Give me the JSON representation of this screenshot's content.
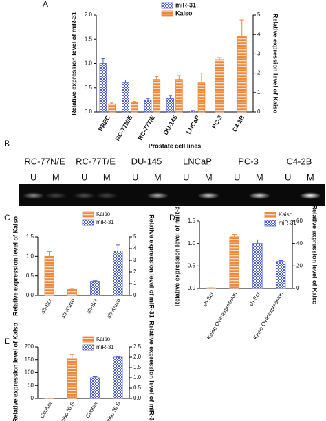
{
  "panel_labels": [
    "A",
    "B",
    "C",
    "D",
    "E"
  ],
  "gel": {
    "samples": [
      "RC-77N/E",
      "RC-77T/E",
      "DU-145",
      "LNCaP",
      "PC-3",
      "C4-2B"
    ],
    "lanes": [
      "U",
      "M"
    ]
  },
  "chart_data": [
    {
      "type": "bar",
      "legend": "top",
      "ylabel": "Relative expression level of miR-31",
      "y2label": "Relative expression level of Kaiso",
      "xlabel": "Prostate cell lines",
      "categories": [
        "PREC",
        "RC-77N/E",
        "RC-77T/E",
        "DU-145",
        "LNCaP",
        "PC-3",
        "C4-2B"
      ],
      "series": [
        {
          "name": "miR-31",
          "color": "#4a5fd6",
          "hatch": "checks",
          "values": [
            1.0,
            0.6,
            0.25,
            0.28,
            0.02,
            null,
            null
          ],
          "errors": [
            0.1,
            0.06,
            0.03,
            0.05,
            0.01,
            null,
            null
          ]
        },
        {
          "name": "Kaiso",
          "color": "#f0883a",
          "hatch": "stripes",
          "axis": "y2",
          "values": [
            0.42,
            0.5,
            1.68,
            1.68,
            1.5,
            2.7,
            3.9
          ],
          "errors": [
            0.05,
            0.05,
            0.15,
            0.2,
            0.5,
            0.1,
            0.85
          ]
        }
      ],
      "ylim": [
        0,
        2
      ],
      "yticks": [
        {
          "value": 0,
          "label": "0.0"
        },
        {
          "value": 0.5,
          "label": "0.5"
        },
        {
          "value": 1,
          "label": "1.0"
        },
        {
          "value": 1.5,
          "label": "1.5"
        },
        {
          "value": 2,
          "label": "2.0"
        }
      ],
      "y2lim": [
        0,
        5
      ],
      "y2ticks": [
        0,
        1,
        2,
        3,
        4,
        5
      ]
    },
    {
      "type": "bar",
      "legend": "top",
      "ylabel": "Relative expression level of Kaiso",
      "y2label": "Relative expression level of miR-31",
      "categories": [
        "sh-Scr",
        "sh-Kaiso",
        "sh-Scr",
        "sh-Kaiso"
      ],
      "series": [
        {
          "name": "Kaiso",
          "color": "#f0883a",
          "hatch": "stripes",
          "values": [
            1.0,
            0.15,
            null,
            null
          ],
          "errors": [
            0.12,
            0.01,
            null,
            null
          ]
        },
        {
          "name": "miR-31",
          "color": "#4a5fd6",
          "hatch": "checks",
          "axis": "y2",
          "values": [
            null,
            null,
            1.2,
            3.8
          ],
          "errors": [
            null,
            null,
            0.05,
            0.5
          ]
        }
      ],
      "ylim": [
        0,
        1.5
      ],
      "yticks": [
        {
          "value": 0,
          "label": "0.0"
        },
        {
          "value": 0.5,
          "label": "0.5"
        },
        {
          "value": 1,
          "label": "1.0"
        },
        {
          "value": 1.5,
          "label": "1.5"
        }
      ],
      "y2lim": [
        0,
        5
      ],
      "y2ticks": [
        0,
        1,
        2,
        3,
        4,
        5
      ]
    },
    {
      "type": "bar",
      "legend": "top-right",
      "ylabel": "Relative expression level of miR-31",
      "y2label": "Relative expression level of Kaiso",
      "categories": [
        "sh-Scr",
        "Kaiso Overexpression",
        "sh-Scr",
        "Kaiso Overexpression"
      ],
      "series": [
        {
          "name": "Kaiso",
          "color": "#f0883a",
          "hatch": "stripes",
          "axis": "y2",
          "values": [
            0.5,
            46,
            null,
            null
          ],
          "errors": [
            0.1,
            2,
            null,
            null
          ]
        },
        {
          "name": "miR-31",
          "color": "#4a5fd6",
          "hatch": "checks",
          "values": [
            null,
            null,
            1.0,
            0.6
          ],
          "errors": [
            null,
            null,
            0.08,
            0.02
          ]
        }
      ],
      "ylim": [
        0,
        1.5
      ],
      "yticks": [
        {
          "value": 0,
          "label": "0.0"
        },
        {
          "value": 0.5,
          "label": "0.5"
        },
        {
          "value": 1,
          "label": "1.0"
        },
        {
          "value": 1.5,
          "label": "1.5"
        }
      ],
      "y2lim": [
        0,
        60
      ],
      "y2ticks": [
        0,
        20,
        40,
        60
      ]
    },
    {
      "type": "bar",
      "legend": "top-left",
      "ylabel": "Relative expression level of Kaiso",
      "y2label": "Relative expression level of miR-31",
      "categories": [
        "Control",
        "Kaiso NLS",
        "Control",
        "Kaiso NLS"
      ],
      "series": [
        {
          "name": "Kaiso",
          "color": "#f0883a",
          "hatch": "stripes",
          "values": [
            1,
            155,
            null,
            null
          ],
          "errors": [
            0.5,
            15,
            null,
            null
          ]
        },
        {
          "name": "miR-31",
          "color": "#4a5fd6",
          "hatch": "checks",
          "axis": "y2",
          "values": [
            null,
            null,
            1.0,
            2.0
          ],
          "errors": [
            null,
            null,
            0.05,
            0.03
          ]
        }
      ],
      "ylim": [
        0,
        200
      ],
      "yticks": [
        0,
        50,
        100,
        150,
        200
      ],
      "y2lim": [
        0,
        2.5
      ],
      "y2ticks": [
        {
          "value": 0,
          "label": "0.0"
        },
        {
          "value": 0.5,
          "label": "0.5"
        },
        {
          "value": 1,
          "label": "1.0"
        },
        {
          "value": 1.5,
          "label": "1.5"
        },
        {
          "value": 2,
          "label": "2.0"
        },
        {
          "value": 2.5,
          "label": "2.5"
        }
      ]
    }
  ]
}
